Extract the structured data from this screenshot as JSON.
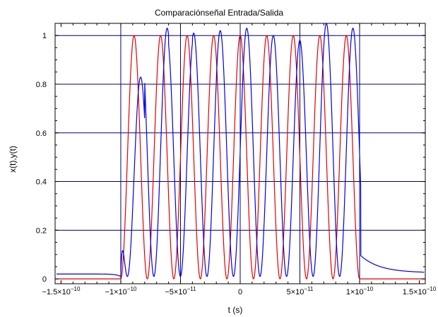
{
  "chart_data": {
    "type": "line",
    "title": "Comparaciónseñal Entrada/Salida",
    "xlabel": "t (s)",
    "ylabel": "x(t),y(t)",
    "xlim": [
      -1.55e-10,
      1.55e-10
    ],
    "ylim": [
      -0.02,
      1.05
    ],
    "grid": "lines at x ticks and y ticks",
    "x_ticks": [
      {
        "value": -1.5e-10,
        "mantissa": "−1.5×10",
        "exponent": "−10"
      },
      {
        "value": -1e-10,
        "mantissa": "−1×10",
        "exponent": "−10"
      },
      {
        "value": -5e-11,
        "mantissa": "−5×10",
        "exponent": "−11"
      },
      {
        "value": 0,
        "mantissa": "0",
        "exponent": ""
      },
      {
        "value": 5e-11,
        "mantissa": "5×10",
        "exponent": "−11"
      },
      {
        "value": 1e-10,
        "mantissa": "1×10",
        "exponent": "−10"
      },
      {
        "value": 1.5e-10,
        "mantissa": "1.5×10",
        "exponent": "−10"
      }
    ],
    "y_ticks": [
      {
        "value": 0,
        "label": "0"
      },
      {
        "value": 0.2,
        "label": "0.2"
      },
      {
        "value": 0.4,
        "label": "0.4"
      },
      {
        "value": 0.6,
        "label": "0.6"
      },
      {
        "value": 0.8,
        "label": "0.8"
      },
      {
        "value": 1,
        "label": "1"
      }
    ],
    "series": [
      {
        "color": "#e00000",
        "description": "input: |cos| squared envelope, zero outside pulse",
        "pulse_start": -1e-10,
        "pulse_end": 1e-10,
        "carrier_frequency": 45000000000.0,
        "amplitude": 1.0
      },
      {
        "color": "#0000e0",
        "description": "output: delayed response with ringing and exponential tails",
        "pulse_start": -1e-10,
        "pulse_end": 1e-10,
        "carrier_frequency": 45000000000.0,
        "delay": 5.5e-12,
        "amplitude_peaks": [
          0.82,
          1.02,
          0.98,
          1.0,
          1.01,
          1.02,
          0.99,
          0.97,
          1.04,
          1.02
        ],
        "baseline_before": 0.02,
        "tail_after_start": 0.1,
        "tail_end": 0.025
      }
    ]
  },
  "colors": {
    "grid": "#000080",
    "input": "#e00000",
    "output": "#0000e0"
  }
}
